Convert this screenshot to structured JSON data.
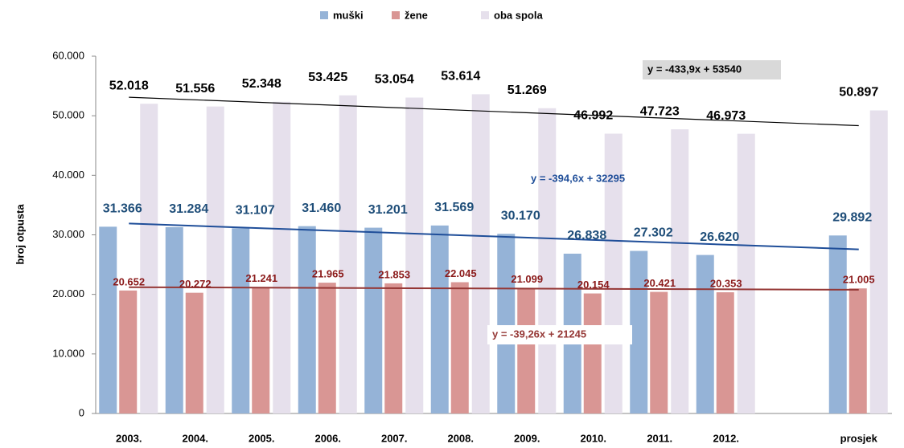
{
  "chart_data": {
    "type": "bar",
    "y_label": "broj otpusta",
    "categories": [
      "2003.",
      "2004.",
      "2005.",
      "2006.",
      "2007.",
      "2008.",
      "2009.",
      "2010.",
      "2011.",
      "2012.",
      null,
      "prosjek"
    ],
    "series": [
      {
        "name": "muški",
        "color": "#95b3d7",
        "label_color": "#1f4e79",
        "values": [
          31366,
          31284,
          31107,
          31460,
          31201,
          31569,
          30170,
          26838,
          27302,
          26620,
          null,
          29892
        ],
        "value_labels": [
          "31.366",
          "31.284",
          "31.107",
          "31.460",
          "31.201",
          "31.569",
          "30.170",
          "26.838",
          "27.302",
          "26.620",
          null,
          "29.892"
        ]
      },
      {
        "name": "žene",
        "color": "#d99694",
        "label_color": "#8b1a1a",
        "values": [
          20652,
          20272,
          21241,
          21965,
          21853,
          22045,
          21099,
          20154,
          20421,
          20353,
          null,
          21005
        ],
        "value_labels": [
          "20.652",
          "20.272",
          "21.241",
          "21.965",
          "21.853",
          "22.045",
          "21.099",
          "20.154",
          "20.421",
          "20.353",
          null,
          "21.005"
        ]
      },
      {
        "name": "oba spola",
        "color": "#e6e0ec",
        "label_color": "#000000",
        "values": [
          52018,
          51556,
          52348,
          53425,
          53054,
          53614,
          51269,
          46992,
          47723,
          46973,
          null,
          50897
        ],
        "value_labels": [
          "52.018",
          "51.556",
          "52.348",
          "53.425",
          "53.054",
          "53.614",
          "51.269",
          "46.992",
          "47.723",
          "46.973",
          null,
          "50.897"
        ]
      }
    ],
    "trendlines": [
      {
        "series": 2,
        "label": "y = -433,9x + 53540",
        "slope": -433.9,
        "intercept": 53540,
        "color": "#000000"
      },
      {
        "series": 0,
        "label": "y = -394,6x + 32295",
        "slope": -394.6,
        "intercept": 32295,
        "color": "#1f4e99"
      },
      {
        "series": 1,
        "label": "y = -39,26x + 21245",
        "slope": -39.26,
        "intercept": 21245,
        "color": "#953735"
      }
    ],
    "ylim": [
      0,
      60000
    ],
    "yticks": [
      0,
      {
        "value": 10000,
        "label": "10.000"
      },
      {
        "value": 20000,
        "label": "20.000"
      },
      {
        "value": 30000,
        "label": "30.000"
      },
      {
        "value": 40000,
        "label": "40.000"
      },
      {
        "value": 50000,
        "label": "50.000"
      },
      {
        "value": 60000,
        "label": "60.000"
      }
    ]
  }
}
